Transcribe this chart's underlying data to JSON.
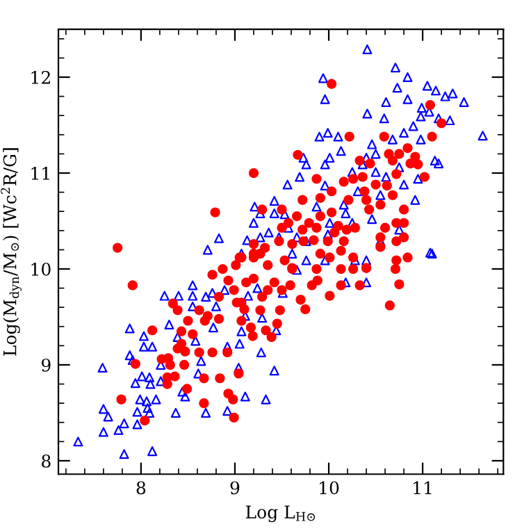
{
  "chart_data": {
    "type": "scatter",
    "xlabel": "Log L$_{H⊙}$",
    "ylabel": "Log(M$_{dyn}$/M$_{⊙}$) [Wc$^{2}$R/G]",
    "xlim": [
      7.12,
      11.86
    ],
    "ylim": [
      7.86,
      12.5
    ],
    "xticks": [
      8,
      9,
      10,
      11
    ],
    "yticks": [
      8,
      9,
      10,
      11,
      12
    ],
    "grid": false,
    "legend": false,
    "series": [
      {
        "color": "#0000ff",
        "marker": "triangle",
        "x": [
          10.41,
          10.71,
          9.94,
          9.96,
          10.84,
          10.73,
          11.05,
          11.14,
          11.32,
          11.44,
          11.24,
          11.64,
          10.61,
          10.84,
          10.41,
          10.59,
          10.99,
          11.29,
          11.13,
          11.17,
          9.9,
          9.99,
          10.1,
          10.13,
          10.01,
          9.73,
          9.76,
          9.96,
          9.69,
          9.56,
          9.21,
          9.42,
          9.27,
          9.42,
          9.53,
          8.71,
          8.83,
          9.13,
          9.27,
          9.07,
          9.47,
          9.61,
          9.76,
          9.99,
          10.18,
          10.46,
          10.55,
          10.75,
          10.92,
          11.08,
          10.28,
          10.31,
          10.55,
          10.61,
          10.95,
          10.8,
          10.5,
          10.4,
          10.68,
          10.8,
          10.9,
          10.98,
          11.07,
          11.17,
          10.98,
          10.75,
          10.5,
          10.36,
          10.25,
          10.46,
          9.96,
          9.87,
          9.66,
          9.36,
          9.2,
          9.57,
          10.01,
          10.25,
          10.16,
          7.33,
          7.59,
          7.6,
          7.6,
          7.65,
          7.76,
          7.82,
          7.82,
          7.88,
          7.88,
          7.91,
          7.94,
          7.96,
          7.96,
          7.99,
          8.01,
          8.03,
          8.03,
          8.06,
          8.07,
          8.09,
          8.09,
          8.1,
          8.12,
          8.12,
          8.16,
          8.21,
          8.21,
          8.25,
          8.3,
          8.37,
          8.39,
          8.4,
          8.44,
          8.47,
          8.55,
          8.55,
          8.55,
          8.58,
          8.61,
          8.64,
          8.69,
          8.69,
          8.76,
          8.77,
          8.8,
          8.89,
          8.92,
          8.92,
          9.04,
          9.05,
          9.07,
          9.11,
          9.11,
          9.14,
          9.24,
          9.28,
          9.29,
          9.33,
          9.42,
          9.44,
          9.51,
          9.66,
          9.76,
          9.96,
          10.18,
          10.4,
          10.4,
          11.1
        ],
        "values": [
          12.29,
          12.1,
          11.99,
          11.77,
          12.0,
          11.89,
          11.91,
          11.86,
          11.83,
          11.74,
          11.8,
          11.39,
          11.74,
          11.77,
          11.62,
          11.57,
          11.68,
          11.55,
          11.13,
          11.1,
          11.38,
          11.42,
          11.38,
          11.23,
          11.16,
          11.16,
          11.09,
          11.09,
          10.96,
          10.88,
          10.65,
          10.71,
          10.58,
          10.58,
          10.57,
          10.2,
          10.32,
          10.3,
          10.33,
          10.16,
          10.33,
          10.16,
          10.29,
          10.36,
          10.58,
          10.52,
          10.29,
          10.41,
          10.72,
          10.17,
          10.09,
          10.81,
          10.77,
          10.96,
          10.94,
          10.88,
          11.2,
          11.16,
          11.35,
          11.42,
          11.49,
          11.59,
          11.64,
          11.57,
          11.35,
          11.06,
          11.01,
          11.09,
          11.01,
          11.3,
          10.87,
          10.65,
          10.33,
          10.38,
          10.48,
          10.43,
          10.48,
          10.48,
          10.67,
          8.2,
          8.97,
          8.54,
          8.3,
          8.46,
          8.32,
          8.39,
          8.07,
          9.38,
          9.1,
          9.05,
          8.81,
          8.38,
          8.51,
          8.64,
          8.88,
          9.3,
          9.19,
          8.62,
          8.55,
          8.5,
          8.87,
          8.8,
          9.19,
          8.1,
          8.64,
          8.83,
          9.0,
          9.72,
          9.42,
          8.5,
          9.29,
          9.72,
          8.72,
          8.67,
          9.83,
          9.72,
          9.61,
          9.25,
          8.91,
          9.04,
          9.71,
          8.5,
          9.75,
          9.39,
          9.61,
          9.78,
          9.19,
          8.52,
          8.97,
          9.22,
          9.35,
          8.67,
          9.51,
          9.72,
          9.8,
          9.13,
          9.49,
          8.64,
          8.94,
          9.36,
          9.75,
          9.99,
          10.09,
          10.09,
          9.86,
          9.86,
          10.09,
          10.16
        ]
      },
      {
        "color": "#ff0000",
        "marker": "circle",
        "x": [
          10.03,
          7.75,
          9.2,
          8.79,
          9.29,
          9.67,
          10.22,
          11.08,
          11.2,
          11.1,
          10.33,
          10.59,
          9.87,
          10.03,
          9.72,
          9.91,
          10.21,
          10.16,
          10.26,
          10.36,
          10.38,
          10.4,
          10.5,
          10.64,
          10.68,
          10.75,
          10.84,
          10.87,
          10.95,
          10.92,
          11.02,
          10.72,
          10.62,
          10.68,
          10.8,
          10.72,
          10.6,
          10.8,
          10.8,
          10.72,
          10.84,
          10.72,
          10.71,
          10.55,
          10.55,
          10.4,
          10.26,
          10.13,
          10.13,
          10.16,
          10.19,
          10.28,
          10.26,
          10.01,
          9.99,
          10.06,
          10.03,
          9.91,
          9.87,
          9.79,
          9.84,
          9.73,
          9.61,
          9.47,
          9.5,
          9.57,
          9.66,
          9.72,
          9.91,
          9.87,
          9.61,
          9.35,
          9.32,
          9.2,
          9.27,
          9.2,
          9.05,
          9.5,
          10.43,
          10.55,
          10.44,
          10.1,
          7.91,
          8.12,
          7.94,
          7.79,
          8.04,
          8.22,
          8.28,
          8.36,
          8.28,
          8.29,
          8.31,
          8.39,
          8.43,
          8.47,
          8.46,
          8.49,
          8.43,
          8.39,
          8.34,
          8.5,
          8.55,
          8.62,
          8.62,
          8.68,
          8.71,
          8.67,
          8.67,
          8.76,
          8.84,
          8.92,
          8.93,
          8.98,
          8.99,
          9.04,
          8.83,
          8.83,
          8.76,
          8.87,
          8.93,
          8.99,
          9.02,
          9.07,
          9.1,
          9.07,
          9.12,
          9.2,
          9.17,
          9.19,
          9.27,
          9.29,
          9.33,
          9.39,
          9.45,
          9.48,
          9.5,
          9.35,
          9.42,
          9.59,
          9.7,
          9.75,
          9.82,
          9.88,
          10.01,
          10.13,
          10.33,
          10.4,
          10.65,
          10.75,
          9.07,
          9.01,
          9.2,
          9.53,
          9.61
        ],
        "values": [
          11.93,
          10.22,
          11.0,
          10.59,
          10.62,
          11.19,
          11.38,
          11.71,
          11.52,
          11.38,
          11.13,
          11.38,
          10.94,
          10.81,
          10.72,
          10.74,
          10.72,
          10.91,
          10.94,
          10.96,
          10.81,
          10.72,
          10.88,
          11.2,
          11.13,
          11.2,
          11.26,
          11.1,
          11.09,
          11.17,
          10.96,
          10.99,
          10.87,
          10.77,
          10.62,
          10.48,
          10.43,
          10.48,
          10.33,
          10.29,
          10.12,
          10.09,
          10.0,
          10.33,
          10.23,
          10.01,
          10.0,
          10.0,
          10.19,
          10.29,
          10.41,
          10.43,
          10.12,
          10.12,
          10.29,
          10.38,
          10.59,
          10.55,
          10.43,
          10.48,
          10.3,
          10.29,
          10.26,
          10.29,
          10.43,
          10.48,
          10.55,
          10.41,
          10.16,
          10.0,
          10.01,
          10.04,
          10.22,
          10.26,
          10.16,
          10.16,
          10.12,
          10.62,
          10.62,
          10.67,
          11.1,
          10.45,
          9.83,
          9.36,
          9.01,
          8.64,
          8.42,
          9.06,
          8.87,
          8.88,
          8.8,
          9.07,
          9.0,
          9.17,
          9.22,
          9.14,
          9.0,
          8.75,
          9.35,
          9.57,
          9.64,
          9.46,
          9.32,
          9.13,
          9.57,
          9.46,
          9.51,
          8.86,
          8.6,
          9.13,
          8.86,
          9.13,
          8.7,
          8.64,
          8.45,
          8.91,
          9.48,
          9.71,
          9.94,
          10.0,
          9.88,
          9.78,
          9.65,
          9.65,
          9.58,
          9.46,
          9.86,
          9.9,
          9.39,
          9.3,
          9.57,
          9.71,
          9.36,
          9.29,
          9.43,
          9.57,
          9.78,
          9.78,
          9.86,
          9.83,
          9.68,
          9.58,
          9.83,
          9.88,
          9.72,
          9.83,
          9.83,
          10.01,
          9.62,
          9.84,
          10.12,
          10.04,
          10.12,
          10.09,
          10.0
        ]
      }
    ]
  }
}
